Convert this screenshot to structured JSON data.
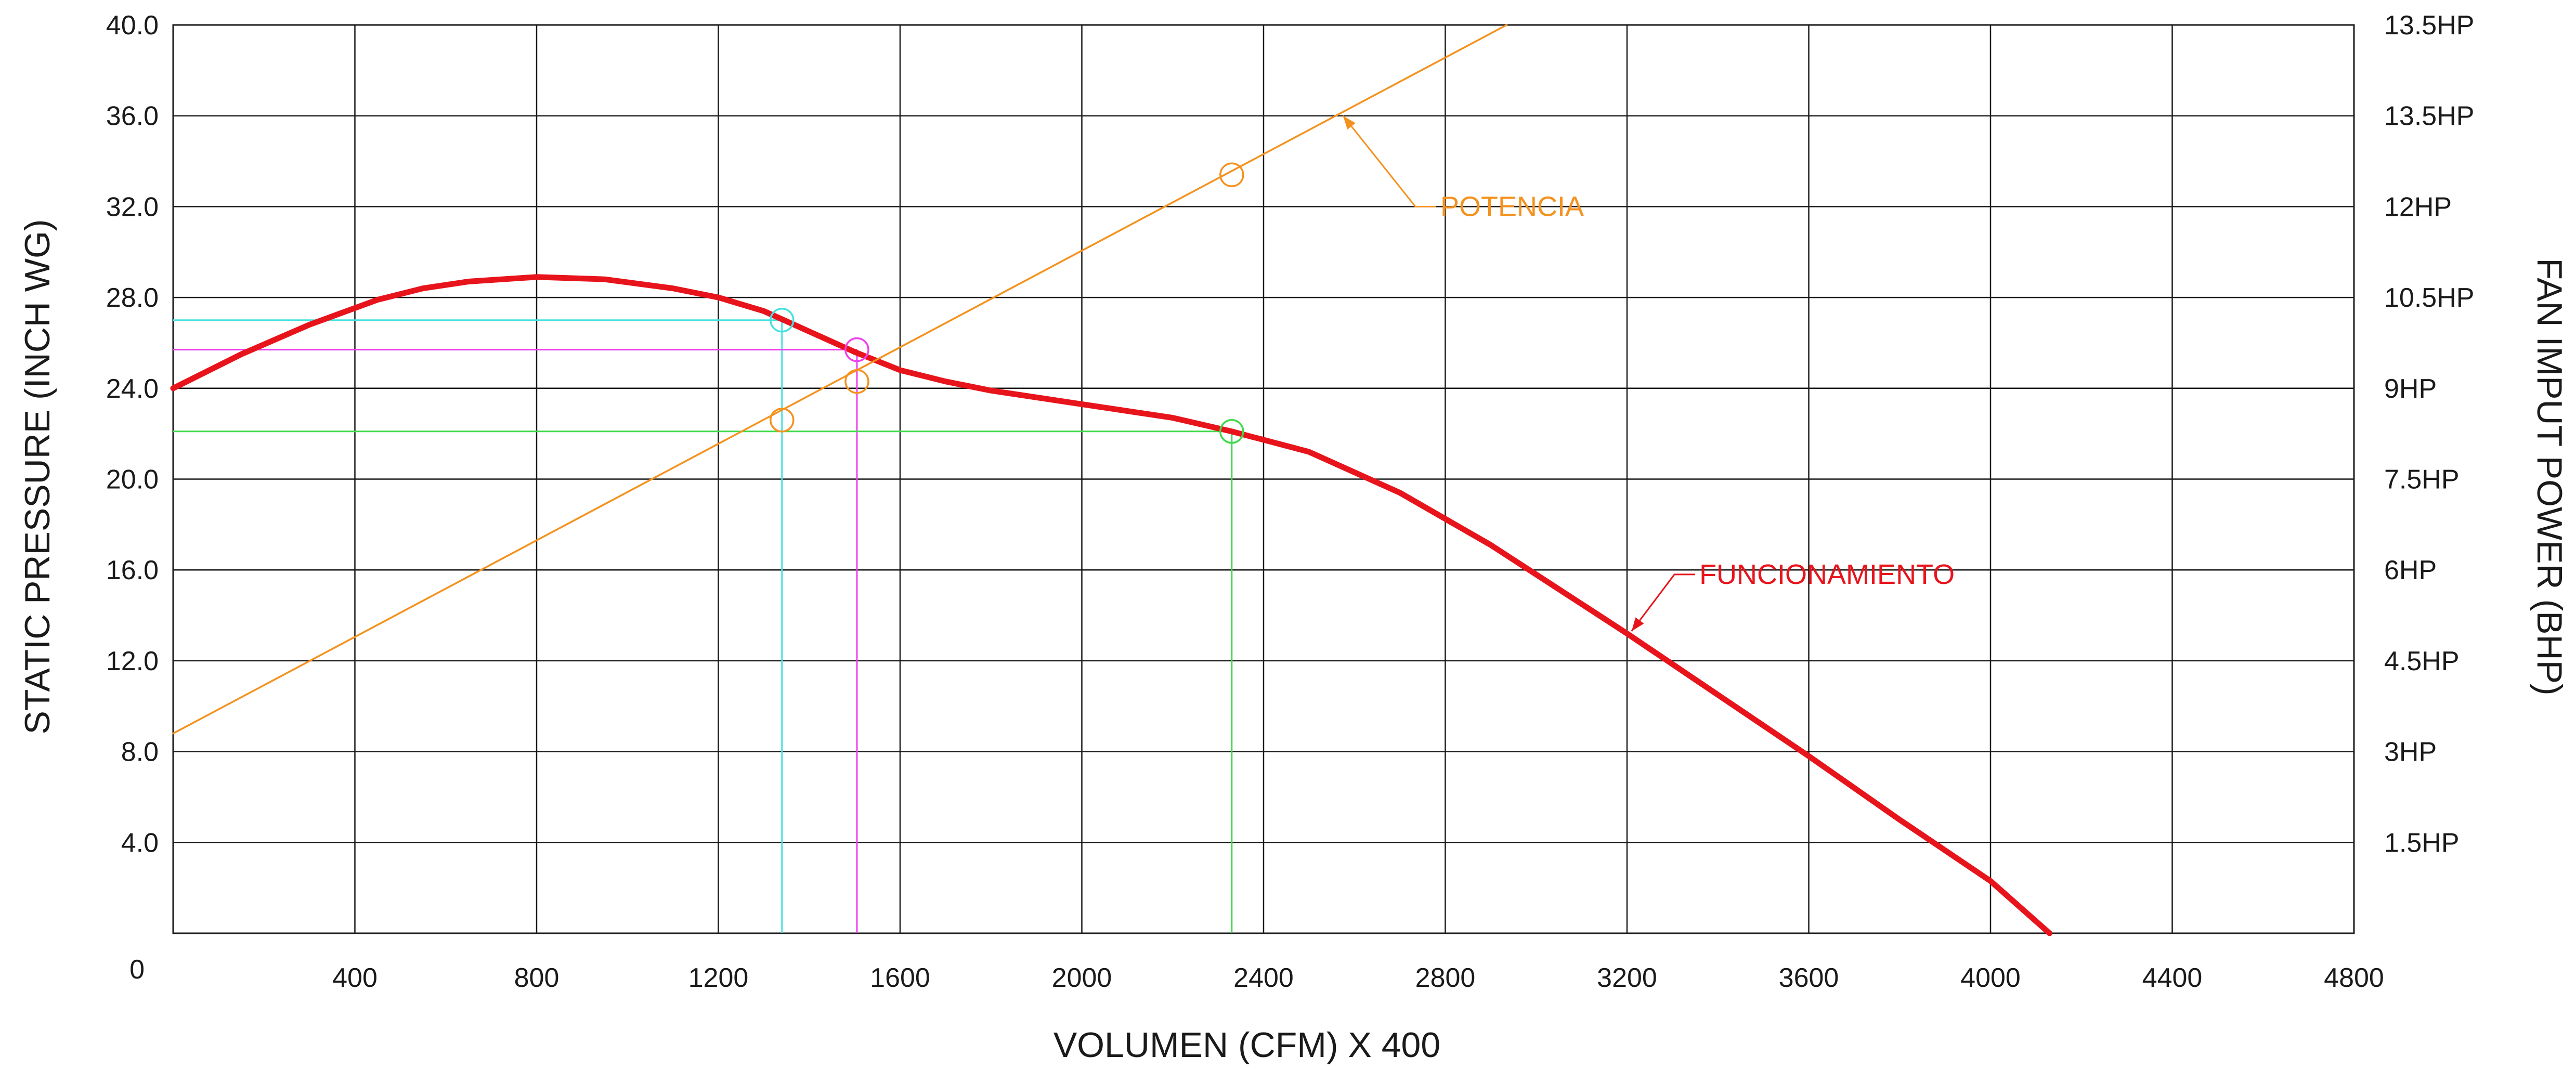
{
  "chart_data": {
    "type": "line",
    "xlabel": "VOLUMEN (CFM) X 400",
    "ylabel": "STATIC PRESSURE (INCH WG)",
    "y2label": "FAN IMPUT POWER (BHP)",
    "xlim": [
      0,
      4800
    ],
    "ylim": [
      0,
      40
    ],
    "grid": true,
    "x_ticks": [
      "400",
      "800",
      "1200",
      "1600",
      "2000",
      "2400",
      "2800",
      "3200",
      "3600",
      "4000",
      "4400",
      "4800"
    ],
    "y_ticks": [
      "4.0",
      "8.0",
      "12.0",
      "16.0",
      "20.0",
      "24.0",
      "28.0",
      "32.0",
      "36.0",
      "40.0"
    ],
    "origin_label": "0",
    "y2_ticks": [
      "1.5HP",
      "3HP",
      "4.5HP",
      "6HP",
      "7.5HP",
      "9HP",
      "10.5HP",
      "12HP",
      "13.5HP",
      "13.5HP"
    ],
    "series": [
      {
        "name": "FUNCIONAMIENTO",
        "color": "#e8141c",
        "x": [
          0,
          150,
          300,
          450,
          550,
          650,
          800,
          950,
          1100,
          1200,
          1300,
          1400,
          1500,
          1600,
          1700,
          1800,
          2000,
          2200,
          2330,
          2500,
          2700,
          2900,
          3100,
          3200,
          3400,
          3600,
          3800,
          4000,
          4130
        ],
        "y": [
          24.0,
          25.5,
          26.8,
          27.9,
          28.4,
          28.7,
          28.9,
          28.8,
          28.4,
          28.0,
          27.4,
          26.5,
          25.6,
          24.8,
          24.3,
          23.9,
          23.3,
          22.7,
          22.1,
          21.2,
          19.4,
          17.1,
          14.5,
          13.2,
          10.5,
          7.8,
          5.0,
          2.3,
          0.0
        ]
      },
      {
        "name": "POTENCIA",
        "color": "#f4921f",
        "x": [
          0,
          2935
        ],
        "y": [
          8.8,
          40.0
        ]
      }
    ],
    "operating_points": [
      {
        "color": "#46e0e0",
        "x": 1340,
        "y": 27.0,
        "power_y": 22.6
      },
      {
        "color": "#ee40ee",
        "x": 1505,
        "y": 25.7,
        "power_y": 24.3
      },
      {
        "color": "#3fd94a",
        "x": 2330,
        "y": 22.1,
        "power_y": 33.4
      }
    ],
    "annotations": [
      {
        "text": "POTENCIA",
        "color": "#f4921f",
        "x": 2780,
        "y": 32.0,
        "target_x": 2575,
        "target_y": 36.0
      },
      {
        "text": "FUNCIONAMIENTO",
        "color": "#e8141c",
        "x": 3350,
        "y": 15.8,
        "target_x": 3210,
        "target_y": 13.3
      }
    ]
  }
}
